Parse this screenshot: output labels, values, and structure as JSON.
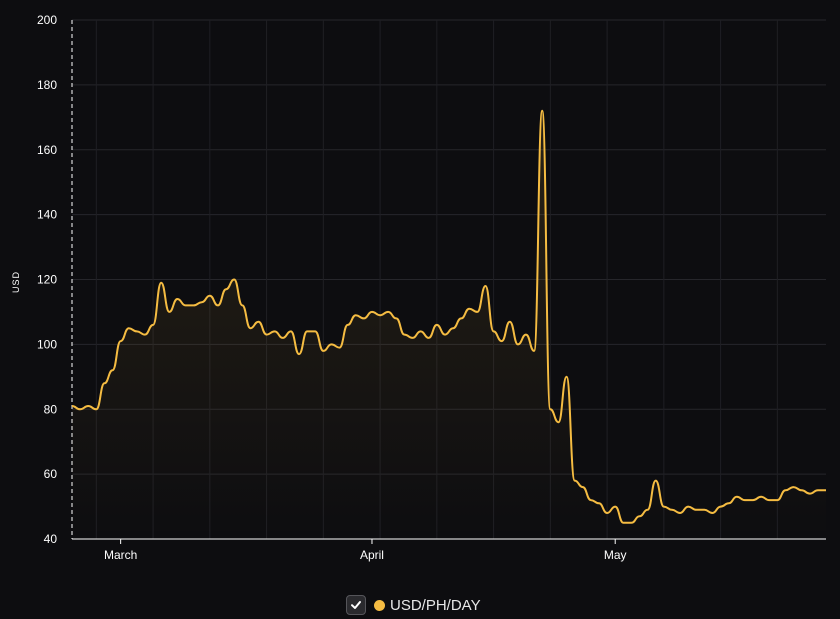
{
  "chart_data": {
    "type": "area",
    "ylabel": "USD",
    "ylim": [
      40,
      200
    ],
    "yticks": [
      40,
      60,
      80,
      100,
      120,
      140,
      160,
      180,
      200
    ],
    "xlim": [
      "2025-02-23",
      "2025-05-27"
    ],
    "xtick_labels": [
      {
        "date": "2025-03-01",
        "label": "March"
      },
      {
        "date": "2025-04-01",
        "label": "April"
      },
      {
        "date": "2025-05-01",
        "label": "May"
      }
    ],
    "grid": true,
    "legend_position": "bottom-center",
    "series": [
      {
        "name": "USD/PH/DAY",
        "color": "#f5bc42",
        "x": [
          "2025-02-23",
          "2025-02-24",
          "2025-02-25",
          "2025-02-26",
          "2025-02-27",
          "2025-02-28",
          "2025-03-01",
          "2025-03-02",
          "2025-03-03",
          "2025-03-04",
          "2025-03-05",
          "2025-03-06",
          "2025-03-07",
          "2025-03-08",
          "2025-03-09",
          "2025-03-10",
          "2025-03-11",
          "2025-03-12",
          "2025-03-13",
          "2025-03-14",
          "2025-03-15",
          "2025-03-16",
          "2025-03-17",
          "2025-03-18",
          "2025-03-19",
          "2025-03-20",
          "2025-03-21",
          "2025-03-22",
          "2025-03-23",
          "2025-03-24",
          "2025-03-25",
          "2025-03-26",
          "2025-03-27",
          "2025-03-28",
          "2025-03-29",
          "2025-03-30",
          "2025-03-31",
          "2025-04-01",
          "2025-04-02",
          "2025-04-03",
          "2025-04-04",
          "2025-04-05",
          "2025-04-06",
          "2025-04-07",
          "2025-04-08",
          "2025-04-09",
          "2025-04-10",
          "2025-04-11",
          "2025-04-12",
          "2025-04-13",
          "2025-04-14",
          "2025-04-15",
          "2025-04-16",
          "2025-04-17",
          "2025-04-18",
          "2025-04-19",
          "2025-04-20",
          "2025-04-21",
          "2025-04-22",
          "2025-04-23",
          "2025-04-24",
          "2025-04-25",
          "2025-04-26",
          "2025-04-27",
          "2025-04-28",
          "2025-04-29",
          "2025-04-30",
          "2025-05-01",
          "2025-05-02",
          "2025-05-03",
          "2025-05-04",
          "2025-05-05",
          "2025-05-06",
          "2025-05-07",
          "2025-05-08",
          "2025-05-09",
          "2025-05-10",
          "2025-05-11",
          "2025-05-12",
          "2025-05-13",
          "2025-05-14",
          "2025-05-15",
          "2025-05-16",
          "2025-05-17",
          "2025-05-18",
          "2025-05-19",
          "2025-05-20",
          "2025-05-21",
          "2025-05-22",
          "2025-05-23",
          "2025-05-24",
          "2025-05-25",
          "2025-05-26",
          "2025-05-27"
        ],
        "values": [
          81,
          80,
          81,
          80,
          88,
          92,
          101,
          105,
          104,
          103,
          106,
          119,
          110,
          114,
          112,
          112,
          113,
          115,
          112,
          117,
          120,
          112,
          105,
          107,
          103,
          104,
          102,
          104,
          97,
          104,
          104,
          98,
          100,
          99,
          106,
          109,
          108,
          110,
          109,
          110,
          108,
          103,
          102,
          104,
          102,
          106,
          103,
          105,
          108,
          111,
          110,
          118,
          104,
          101,
          107,
          100,
          103,
          98,
          172,
          80,
          76,
          90,
          58,
          56,
          52,
          51,
          48,
          50,
          45,
          45,
          47,
          49,
          58,
          50,
          49,
          48,
          50,
          49,
          49,
          48,
          50,
          51,
          53,
          52,
          52,
          53,
          52,
          52,
          55,
          56,
          55,
          54,
          55,
          55
        ]
      }
    ]
  },
  "legend": {
    "toggle_icon": "check-icon",
    "label": "USD/PH/DAY",
    "color": "#f5bc42"
  }
}
